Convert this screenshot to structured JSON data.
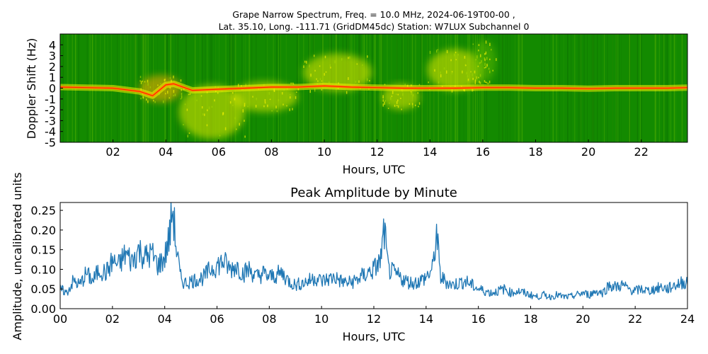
{
  "figure": {
    "title_line1": "Grape Narrow Spectrum, Freq. = 10.0 MHz, 2024-06-19T00-00 ,",
    "title_line2": "Lat.  35.10, Long. -111.71 (GridDM45dc) Station: W7LUX Subchannel 0"
  },
  "chart_data": [
    {
      "type": "heatmap",
      "title": "Grape Narrow Spectrum, Freq. = 10.0 MHz, 2024-06-19T00-00 , Lat.  35.10, Long. -111.71 (GridDM45dc) Station: W7LUX Subchannel 0",
      "xlabel": "Hours, UTC",
      "ylabel": "Doppler Shift (Hz)",
      "xlim": [
        0,
        23.75
      ],
      "ylim": [
        -5,
        5
      ],
      "x_ticks": [
        2,
        4,
        6,
        8,
        10,
        12,
        14,
        16,
        18,
        20,
        22
      ],
      "x_tick_labels": [
        "02",
        "04",
        "06",
        "08",
        "10",
        "12",
        "14",
        "16",
        "18",
        "20",
        "22"
      ],
      "y_ticks": [
        -5,
        -4,
        -3,
        -2,
        -1,
        0,
        1,
        2,
        3,
        4
      ],
      "y_tick_labels": [
        "-5",
        "-4",
        "-3",
        "-2",
        "-1",
        "0",
        "1",
        "2",
        "3",
        "4"
      ],
      "colormap": [
        "#138a00",
        "#5cb800",
        "#e8ec00",
        "#ffb000",
        "#ff3b00"
      ],
      "background_color": "#138a00",
      "carrier_track": {
        "x": [
          0,
          1,
          2,
          3,
          3.5,
          4,
          4.3,
          5,
          6,
          7,
          8,
          9,
          10,
          11,
          12,
          13,
          14,
          15,
          16,
          17,
          18,
          19,
          20,
          21,
          22,
          23,
          23.75
        ],
        "y": [
          0.1,
          0.05,
          0,
          -0.3,
          -0.7,
          0.3,
          0.4,
          -0.2,
          -0.1,
          0,
          0.1,
          0.1,
          0.2,
          0.1,
          0.05,
          0,
          0,
          0,
          0.05,
          0.05,
          0,
          0,
          -0.05,
          0,
          0,
          0,
          0.05
        ]
      },
      "spread_regions": [
        {
          "x_start": 3.0,
          "x_end": 4.6,
          "y_low": -1.3,
          "y_high": 1.2,
          "level": 0.7
        },
        {
          "x_start": 4.5,
          "x_end": 7.0,
          "y_low": -4.7,
          "y_high": 0.3,
          "level": 0.55
        },
        {
          "x_start": 6.5,
          "x_end": 9.0,
          "y_low": -2.2,
          "y_high": 0.6,
          "level": 0.45
        },
        {
          "x_start": 9.2,
          "x_end": 11.8,
          "y_low": -0.3,
          "y_high": 3.2,
          "level": 0.6
        },
        {
          "x_start": 12.2,
          "x_end": 13.6,
          "y_low": -2.0,
          "y_high": 0.4,
          "level": 0.45
        },
        {
          "x_start": 13.9,
          "x_end": 16.0,
          "y_low": -0.2,
          "y_high": 3.6,
          "level": 0.5
        },
        {
          "x_start": 15.6,
          "x_end": 16.5,
          "y_low": 0.5,
          "y_high": 4.4,
          "level": 0.35
        }
      ]
    },
    {
      "type": "line",
      "title": "Peak Amplitude by Minute",
      "xlabel": "Hours, UTC",
      "ylabel": "Amplitude, uncalibrated units",
      "xlim": [
        0,
        24
      ],
      "ylim": [
        0,
        0.27
      ],
      "x_ticks": [
        0,
        2,
        4,
        6,
        8,
        10,
        12,
        14,
        16,
        18,
        20,
        22,
        24
      ],
      "x_tick_labels": [
        "00",
        "02",
        "04",
        "06",
        "08",
        "10",
        "12",
        "14",
        "16",
        "18",
        "20",
        "22",
        "24"
      ],
      "y_ticks": [
        0,
        0.05,
        0.1,
        0.15,
        0.2,
        0.25
      ],
      "y_tick_labels": [
        "0.00",
        "0.05",
        "0.10",
        "0.15",
        "0.20",
        "0.25"
      ],
      "line_color": "#1f77b4",
      "series": [
        {
          "x": [
            0,
            0.25,
            0.5,
            0.75,
            1,
            1.25,
            1.5,
            1.75,
            2,
            2.25,
            2.5,
            2.75,
            3,
            3.25,
            3.5,
            3.75,
            4,
            4.2,
            4.3,
            4.45,
            4.6,
            4.75,
            5,
            5.25,
            5.5,
            5.75,
            6,
            6.25,
            6.5,
            6.75,
            7,
            7.25,
            7.5,
            7.75,
            8,
            8.25,
            8.5,
            8.75,
            9,
            9.25,
            9.5,
            9.75,
            10,
            10.25,
            10.5,
            10.75,
            11,
            11.25,
            11.5,
            11.75,
            12,
            12.25,
            12.4,
            12.55,
            12.75,
            13,
            13.25,
            13.5,
            13.75,
            14,
            14.25,
            14.4,
            14.55,
            14.75,
            15,
            15.25,
            15.5,
            15.75,
            16,
            16.25,
            16.5,
            16.75,
            17,
            17.25,
            17.5,
            17.75,
            18,
            18.25,
            18.5,
            18.75,
            19,
            19.25,
            19.5,
            19.75,
            20,
            20.25,
            20.5,
            20.75,
            21,
            21.25,
            21.5,
            21.75,
            22,
            22.25,
            22.5,
            22.75,
            23,
            23.25,
            23.5,
            23.75,
            24
          ],
          "y": [
            0.05,
            0.04,
            0.07,
            0.06,
            0.09,
            0.07,
            0.1,
            0.09,
            0.12,
            0.11,
            0.14,
            0.12,
            0.15,
            0.13,
            0.14,
            0.11,
            0.13,
            0.19,
            0.26,
            0.15,
            0.08,
            0.065,
            0.07,
            0.075,
            0.08,
            0.1,
            0.11,
            0.12,
            0.1,
            0.11,
            0.09,
            0.1,
            0.08,
            0.09,
            0.08,
            0.085,
            0.09,
            0.07,
            0.06,
            0.065,
            0.07,
            0.08,
            0.07,
            0.075,
            0.08,
            0.07,
            0.065,
            0.07,
            0.08,
            0.09,
            0.1,
            0.12,
            0.2,
            0.1,
            0.09,
            0.08,
            0.07,
            0.065,
            0.07,
            0.08,
            0.1,
            0.19,
            0.08,
            0.07,
            0.06,
            0.065,
            0.07,
            0.06,
            0.05,
            0.045,
            0.04,
            0.045,
            0.05,
            0.04,
            0.045,
            0.04,
            0.035,
            0.03,
            0.035,
            0.03,
            0.035,
            0.03,
            0.03,
            0.035,
            0.04,
            0.035,
            0.045,
            0.04,
            0.06,
            0.055,
            0.06,
            0.05,
            0.045,
            0.05,
            0.045,
            0.05,
            0.055,
            0.05,
            0.06,
            0.065,
            0.07
          ]
        }
      ]
    }
  ]
}
